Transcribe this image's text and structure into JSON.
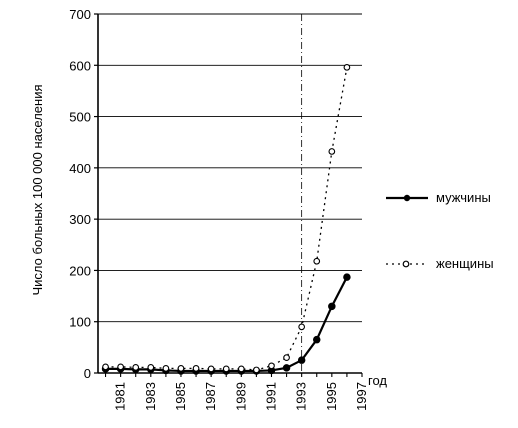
{
  "chart_data": {
    "type": "line",
    "ylabel": "Число больных 100 000 населения",
    "xlabel": "год",
    "ylim": [
      0,
      700
    ],
    "y_ticks": [
      "0",
      "100",
      "200",
      "300",
      "400",
      "500",
      "600",
      "700"
    ],
    "x_ticks": [
      "1981",
      "1983",
      "1985",
      "1987",
      "1989",
      "1991",
      "1993",
      "1995",
      "1997"
    ],
    "grid": true,
    "legend_placement": "right",
    "series": [
      {
        "name": "мужчины",
        "style": "solid",
        "marker": "filled-circle",
        "x": [
          1980,
          1981,
          1982,
          1983,
          1984,
          1985,
          1986,
          1987,
          1988,
          1989,
          1990,
          1991,
          1992,
          1993,
          1994,
          1995,
          1996
        ],
        "values": [
          8,
          8,
          7,
          7,
          5,
          4,
          4,
          4,
          4,
          4,
          4,
          5,
          10,
          25,
          65,
          130,
          187
        ]
      },
      {
        "name": "женщины",
        "style": "dotted",
        "marker": "open-circle",
        "x": [
          1980,
          1981,
          1982,
          1983,
          1984,
          1985,
          1986,
          1987,
          1988,
          1989,
          1990,
          1991,
          1992,
          1993,
          1994,
          1995,
          1996
        ],
        "values": [
          12,
          12,
          11,
          11,
          9,
          9,
          9,
          8,
          8,
          8,
          6,
          14,
          30,
          90,
          218,
          432,
          596
        ]
      }
    ]
  }
}
